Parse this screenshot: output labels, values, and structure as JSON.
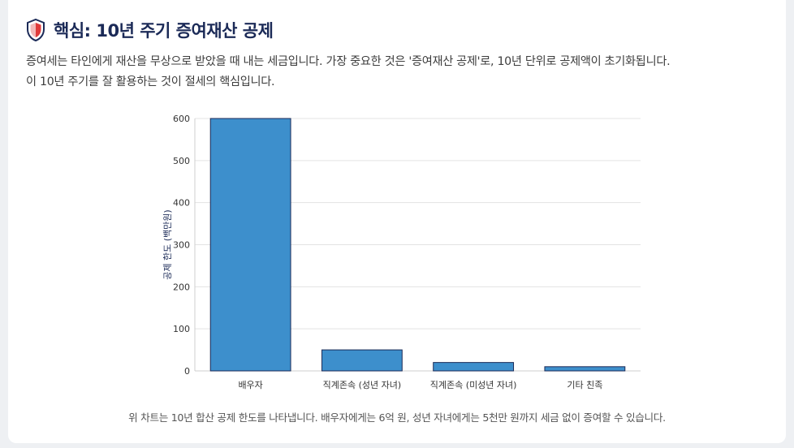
{
  "header": {
    "icon": "shield-icon",
    "title": "핵심: 10년 주기 증여재산 공제"
  },
  "description": {
    "line1": "증여세는 타인에게 재산을 무상으로 받았을 때 내는 세금입니다. 가장 중요한 것은 '증여재산 공제'로, 10년 단위로 공제액이 초기화됩니다.",
    "line2": "이 10년 주기를 잘 활용하는 것이 절세의 핵심입니다."
  },
  "chart_data": {
    "type": "bar",
    "categories": [
      "배우자",
      "직계존속 (성년 자녀)",
      "직계존속 (미성년 자녀)",
      "기타 친족"
    ],
    "values": [
      600,
      50,
      20,
      10
    ],
    "ylabel": "공제 한도 (백만원)",
    "xlabel": "",
    "ylim": [
      0,
      600
    ],
    "yticks": [
      0,
      100,
      200,
      300,
      400,
      500,
      600
    ],
    "grid": true,
    "legend": "none",
    "bar_color": "#3d8fcc",
    "bar_border_color": "#1b2a57"
  },
  "caption": "위 차트는 10년 합산 공제 한도를 나타냅니다. 배우자에게는 6억 원, 성년 자녀에게는 5천만 원까지 세금 없이 증여할 수 있습니다."
}
